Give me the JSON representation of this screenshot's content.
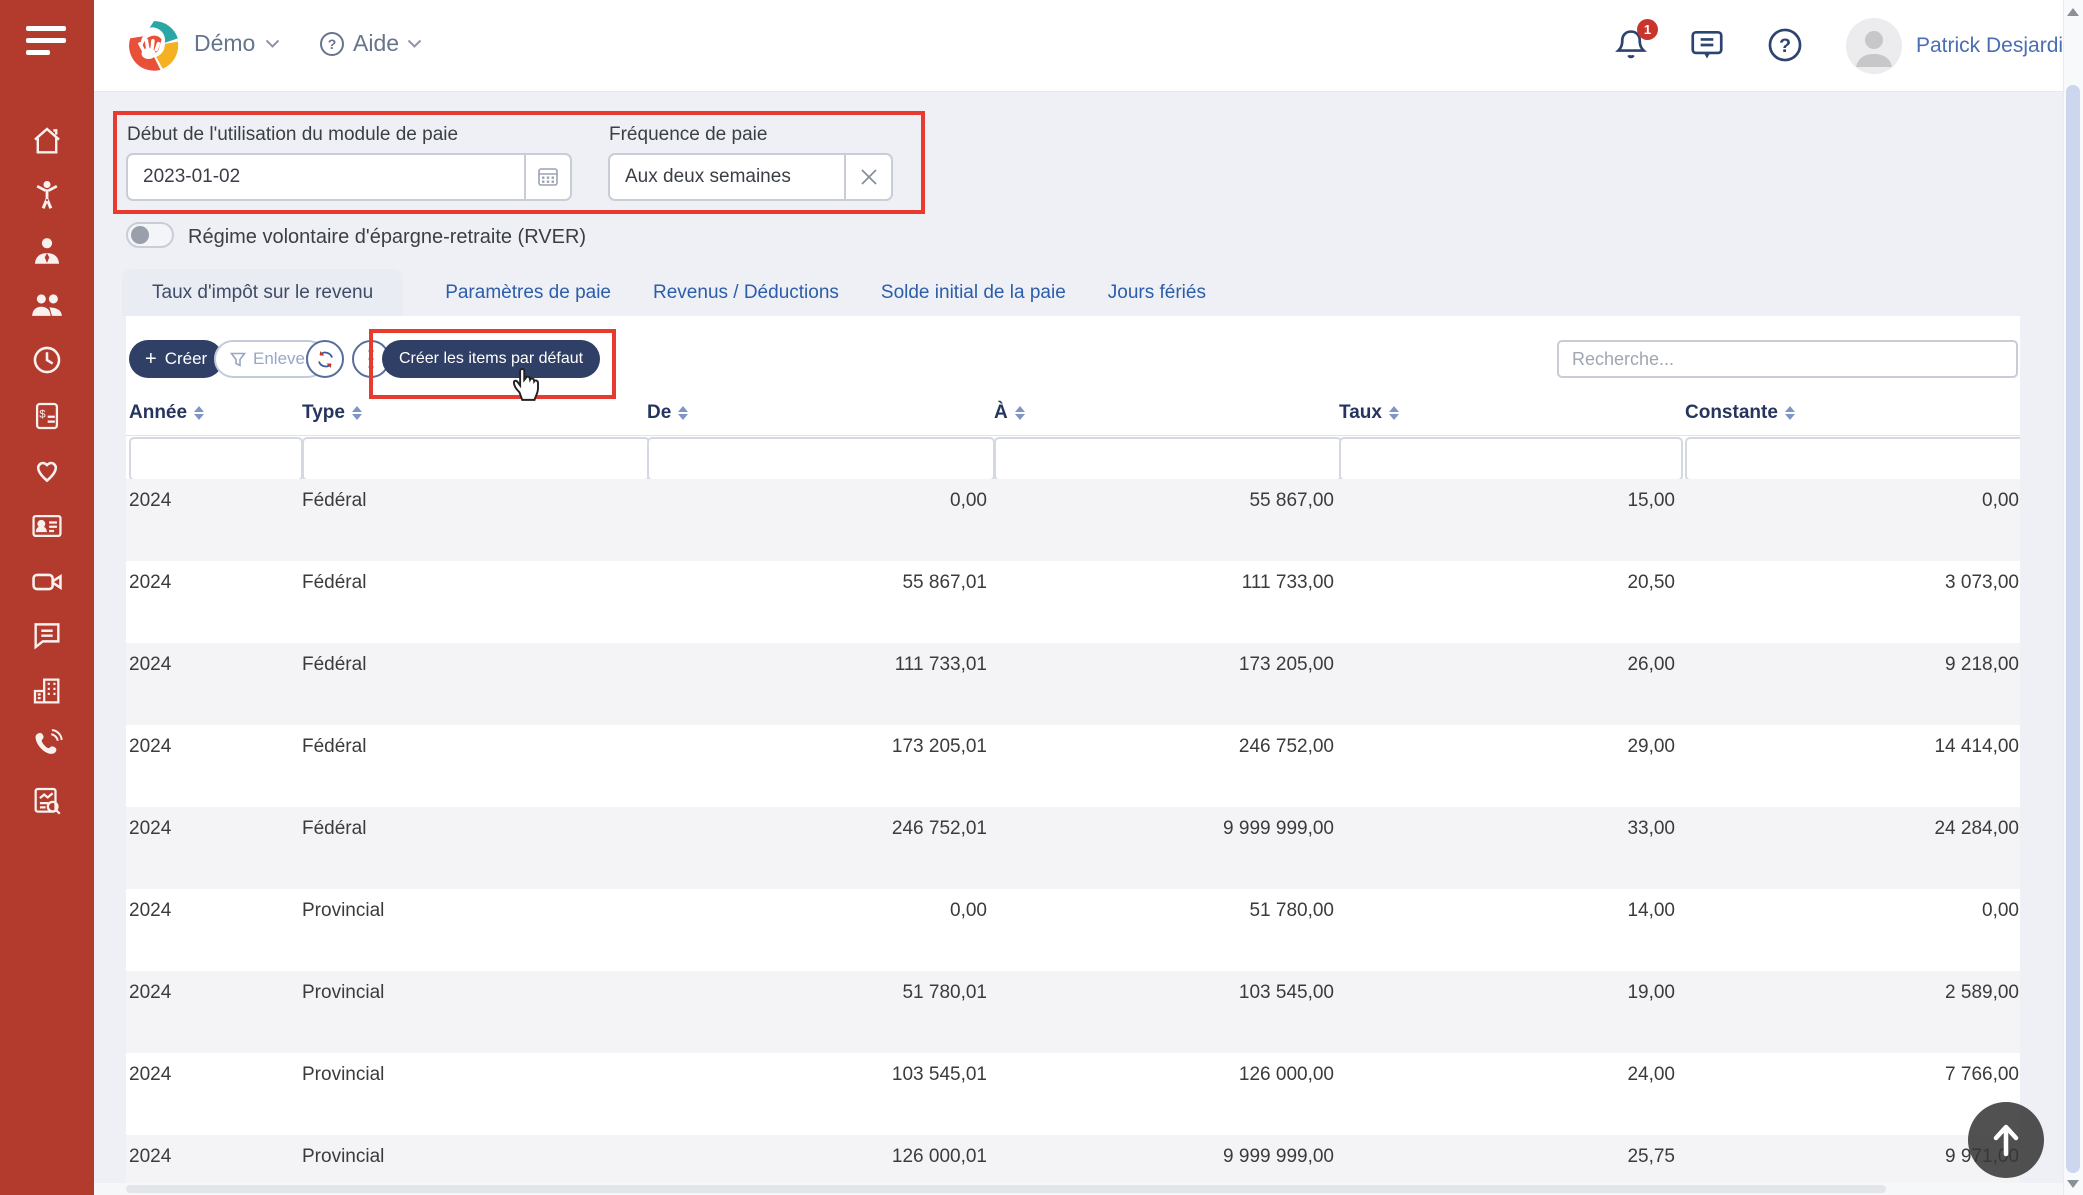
{
  "header": {
    "brand": "Démo",
    "help_menu": "Aide",
    "user_name": "Patrick Desjardins",
    "notification_count": "1"
  },
  "sidebar": {
    "icons": [
      "menu",
      "home",
      "employee",
      "manager",
      "team",
      "time",
      "payroll-document",
      "benefits",
      "id-card",
      "video",
      "messages",
      "company",
      "phone",
      "reports"
    ]
  },
  "filters": {
    "payroll_start_label": "Début de l'utilisation du module de paie",
    "payroll_start_value": "2023-01-02",
    "frequency_label": "Fréquence de paie",
    "frequency_value": "Aux deux semaines"
  },
  "rver_toggle_label": "Régime volontaire d'épargne-retraite (RVER)",
  "tabs": [
    "Taux d'impôt sur le revenu",
    "Paramètres de paie",
    "Revenus / Déductions",
    "Solde initial de la paie",
    "Jours fériés"
  ],
  "toolbar": {
    "plus": "+",
    "create_label": "Créer",
    "remove_label": "Enlever",
    "create_defaults_label": "Créer les items par défaut",
    "search_placeholder": "Recherche..."
  },
  "table": {
    "columns": [
      "Année",
      "Type",
      "De",
      "À",
      "Taux",
      "Constante"
    ],
    "rows": [
      [
        "2024",
        "Fédéral",
        "0,00",
        "55 867,00",
        "15,00",
        "0,00"
      ],
      [
        "2024",
        "Fédéral",
        "55 867,01",
        "111 733,00",
        "20,50",
        "3 073,00"
      ],
      [
        "2024",
        "Fédéral",
        "111 733,01",
        "173 205,00",
        "26,00",
        "9 218,00"
      ],
      [
        "2024",
        "Fédéral",
        "173 205,01",
        "246 752,00",
        "29,00",
        "14 414,00"
      ],
      [
        "2024",
        "Fédéral",
        "246 752,01",
        "9 999 999,00",
        "33,00",
        "24 284,00"
      ],
      [
        "2024",
        "Provincial",
        "0,00",
        "51 780,00",
        "14,00",
        "0,00"
      ],
      [
        "2024",
        "Provincial",
        "51 780,01",
        "103 545,00",
        "19,00",
        "2 589,00"
      ],
      [
        "2024",
        "Provincial",
        "103 545,01",
        "126 000,00",
        "24,00",
        "7 766,00"
      ],
      [
        "2024",
        "Provincial",
        "126 000,01",
        "9 999 999,00",
        "25,75",
        "9 971,00"
      ]
    ]
  },
  "colors": {
    "sidebar": "#b23b2d",
    "primary_button": "#2f3f66",
    "annotation": "#e73b2f",
    "tab_link": "#2c5da9",
    "badge": "#c9352b"
  }
}
